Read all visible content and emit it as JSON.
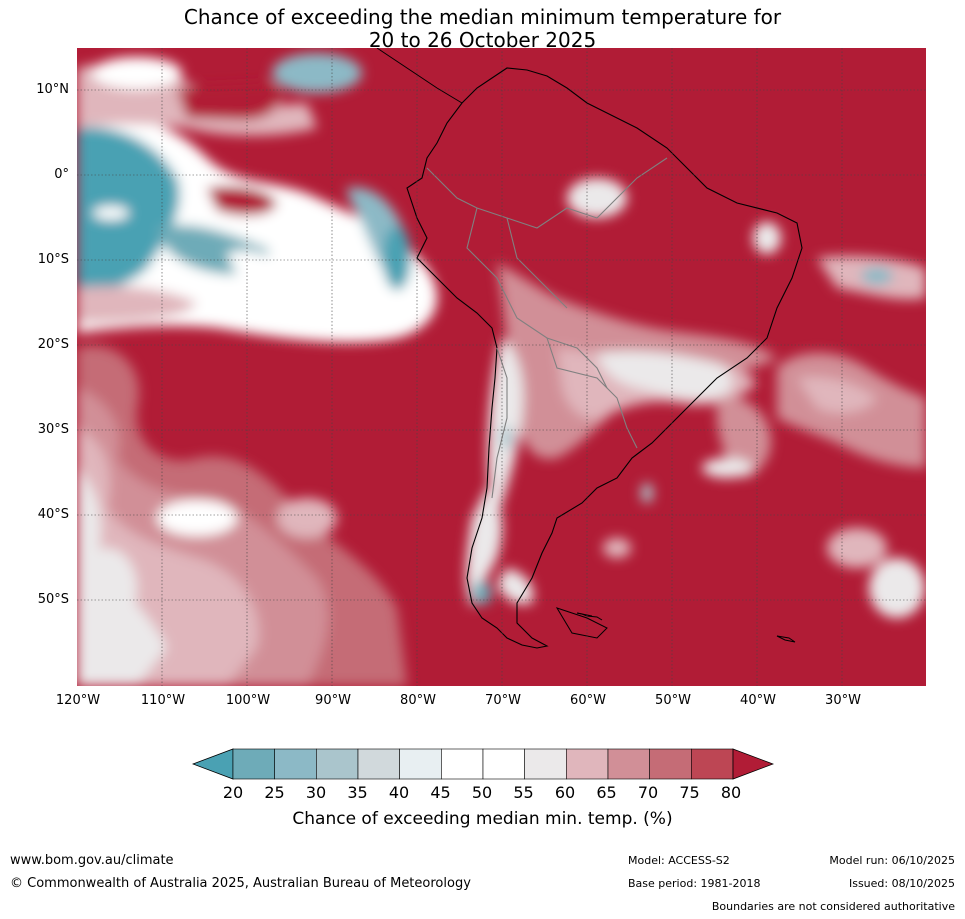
{
  "title": {
    "line1": "Chance of exceeding the median minimum temperature for",
    "line2": "20 to 26 October 2025"
  },
  "map": {
    "lat_labels": [
      "10°N",
      "0°",
      "10°S",
      "20°S",
      "30°S",
      "40°S",
      "50°S"
    ],
    "lon_labels": [
      "120°W",
      "110°W",
      "100°W",
      "90°W",
      "80°W",
      "70°W",
      "60°W",
      "50°W",
      "40°W",
      "30°W"
    ]
  },
  "colorbar": {
    "ticks": [
      "20",
      "25",
      "30",
      "35",
      "40",
      "45",
      "50",
      "55",
      "60",
      "65",
      "70",
      "75",
      "80"
    ],
    "label": "Chance of exceeding median min. temp. (%)",
    "colors": [
      "#4aa1b3",
      "#6eabb8",
      "#8cb9c6",
      "#aac5cc",
      "#d1d9dc",
      "#e8eff2",
      "#ffffff",
      "#ffffff",
      "#ebe9ea",
      "#e0b6bc",
      "#d18f97",
      "#c56c76",
      "#bd4654",
      "#b11c36"
    ]
  },
  "footer": {
    "url": "www.bom.gov.au/climate",
    "copyright": "© Commonwealth of Australia 2025, Australian Bureau of Meteorology",
    "model": "Model: ACCESS-S2",
    "base_period": "Base period: 1981-2018",
    "model_run": "Model run: 06/10/2025",
    "issued": "Issued: 08/10/2025",
    "disclaimer": "Boundaries are not considered authoritative"
  }
}
